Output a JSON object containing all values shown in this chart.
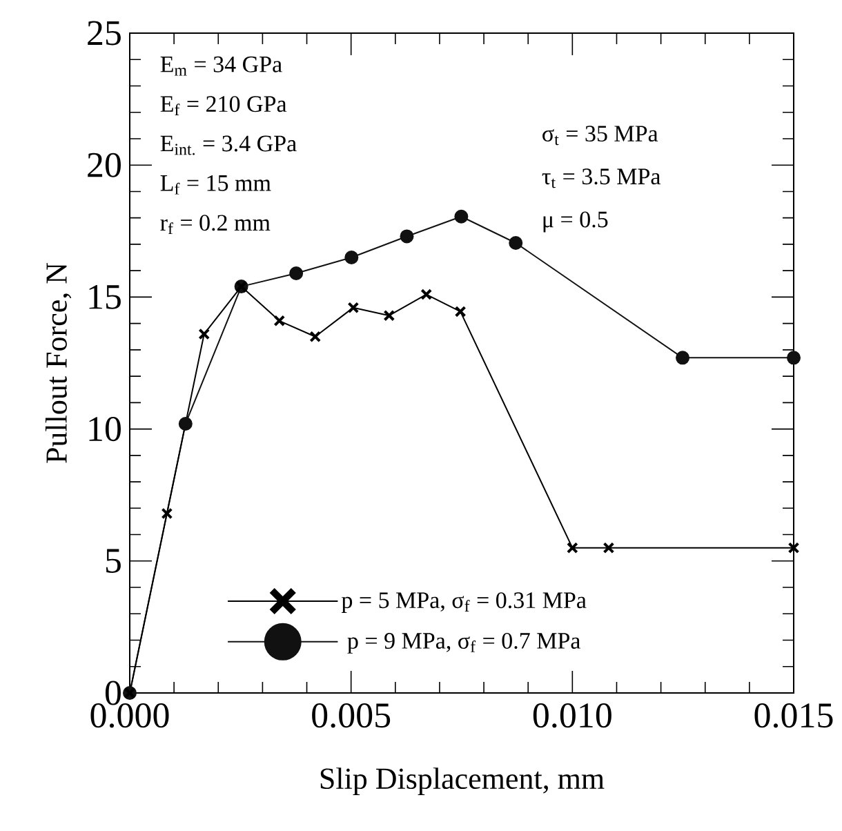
{
  "chart_data": {
    "type": "line",
    "xlabel": "Slip Displacement, mm",
    "ylabel": "Pullout Force, N",
    "xlim": [
      0,
      0.015
    ],
    "xticks": [
      {
        "value": 0,
        "label": "0.000"
      },
      0.005,
      {
        "value": 0.01,
        "label": "0.010"
      },
      0.015
    ],
    "ylim": [
      0,
      25
    ],
    "yticks": [
      0,
      5,
      10,
      15,
      20,
      25
    ],
    "grid": false,
    "legend": "bottom",
    "line_style": "solid",
    "annotations": [
      "E$_{m}$ = 34 GPa",
      "E$_{f}$ = 210 GPa",
      "E$_{int.}$ = 3.4 GPa",
      "L$_{f}$ = 15 mm",
      "r$_{f}$ = 0.2 mm",
      "σ$_{t}$ = 35 MPa",
      "τ$_{t}$ = 3.5 MPa",
      "μ = 0.5"
    ],
    "series": [
      {
        "name": "p = 5 MPa, σ$_{f}$ = 0.31 MPa",
        "color": "#000000",
        "marker": "cross",
        "x": [
          0,
          0.00084,
          0.00168,
          0.00252,
          0.00338,
          0.00419,
          0.00505,
          0.00586,
          0.0067,
          0.00747,
          0.01,
          0.01082,
          0.015
        ],
        "values": [
          0,
          6.8,
          13.6,
          15.4,
          14.1,
          13.5,
          14.6,
          14.3,
          15.1,
          14.45,
          5.5,
          5.5,
          5.5
        ]
      },
      {
        "name": "p = 9 MPa, σ$_{f}$ = 0.7 MPa",
        "color": "#111111",
        "marker": "circle",
        "x": [
          0,
          0.00126,
          0.00252,
          0.00376,
          0.00501,
          0.00626,
          0.00749,
          0.00872,
          0.01249,
          0.015
        ],
        "values": [
          0,
          10.2,
          15.4,
          15.9,
          16.5,
          17.3,
          18.05,
          17.05,
          12.7,
          12.7
        ]
      }
    ]
  }
}
